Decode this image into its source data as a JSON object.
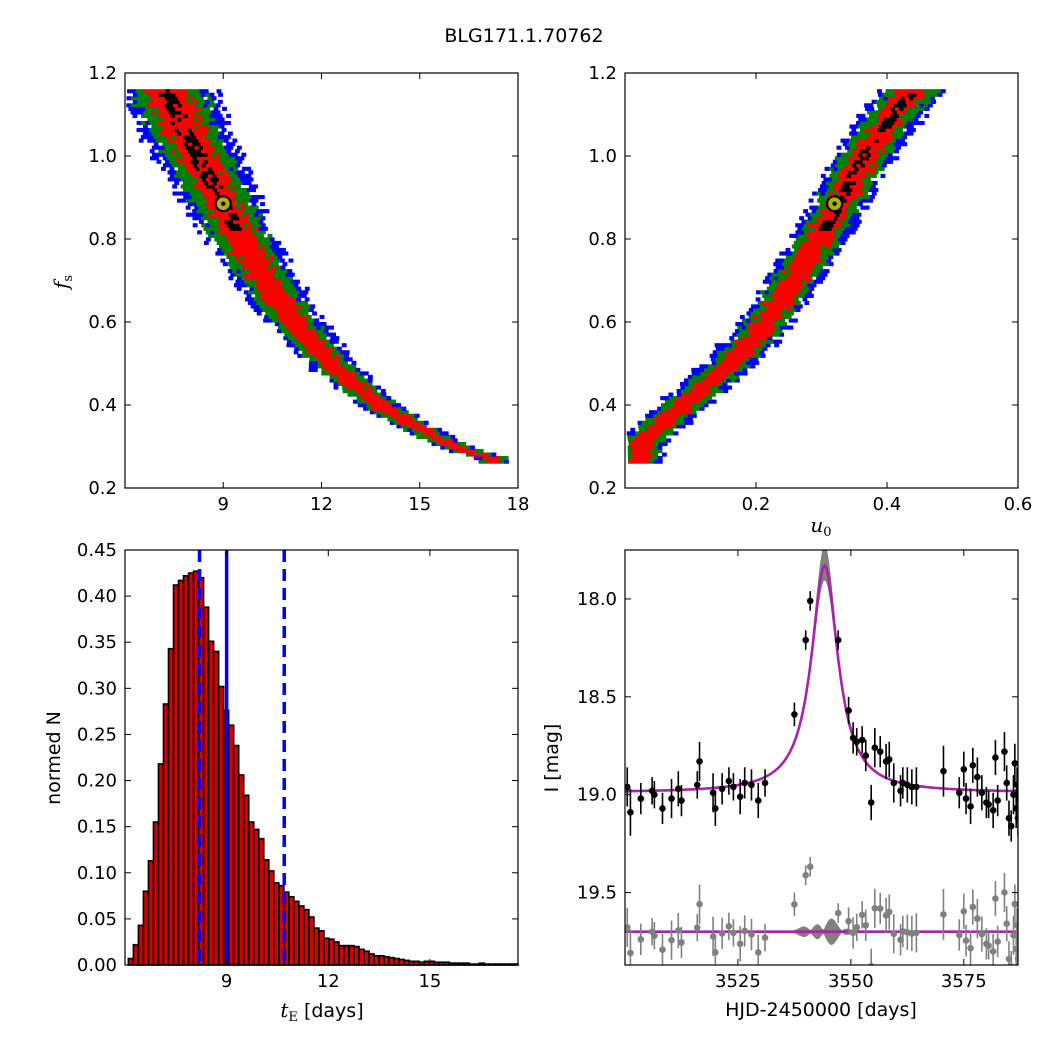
{
  "figure": {
    "title": "BLG171.1.70762"
  },
  "colors": {
    "sigma1": "#ff0000",
    "sigma2": "#008000",
    "sigma3": "#0000ff",
    "best": "#000000",
    "marker_face": "#b5b000",
    "hist_bar": "#d40000",
    "hist_lines": "#0000ff",
    "model": "#aa22aa",
    "band": "#808080",
    "data": "#000000",
    "residual": "#808080"
  },
  "chart_data": [
    {
      "type": "heatmap",
      "panel": "fs_vs_tE",
      "xlabel": "",
      "ylabel": {
        "main": "f",
        "sub": "s"
      },
      "xlim": [
        6.0,
        18.0
      ],
      "ylim": [
        0.2,
        1.2
      ],
      "xticks": [
        "9",
        "12",
        "15",
        "18"
      ],
      "yticks": [
        "0.2",
        "0.4",
        "0.6",
        "0.8",
        "1.0",
        "1.2"
      ],
      "best_fit": {
        "x": 9.0,
        "y": 0.885
      },
      "ridge": [
        [
          7.2,
          1.15
        ],
        [
          7.8,
          1.05
        ],
        [
          8.4,
          0.96
        ],
        [
          9.0,
          0.87
        ],
        [
          9.6,
          0.78
        ],
        [
          10.2,
          0.7
        ],
        [
          10.8,
          0.63
        ],
        [
          11.5,
          0.56
        ],
        [
          12.2,
          0.5
        ],
        [
          13.0,
          0.44
        ],
        [
          13.8,
          0.39
        ],
        [
          14.7,
          0.35
        ],
        [
          15.6,
          0.31
        ],
        [
          16.5,
          0.28
        ],
        [
          17.2,
          0.27
        ]
      ],
      "levels": [
        "3-sigma",
        "2-sigma",
        "1-sigma",
        "best"
      ]
    },
    {
      "type": "heatmap",
      "panel": "fs_vs_u0",
      "xlabel": {
        "main": "u",
        "sub": "0"
      },
      "ylabel": "",
      "xlim": [
        0.0,
        0.6
      ],
      "ylim": [
        0.2,
        1.2
      ],
      "xticks": [
        "0.2",
        "0.4",
        "0.6"
      ],
      "yticks": [
        "0.2",
        "0.4",
        "0.6",
        "0.8",
        "1.0",
        "1.2"
      ],
      "best_fit": {
        "x": 0.32,
        "y": 0.885
      },
      "ridge": [
        [
          0.02,
          0.3
        ],
        [
          0.06,
          0.36
        ],
        [
          0.11,
          0.43
        ],
        [
          0.16,
          0.5
        ],
        [
          0.2,
          0.57
        ],
        [
          0.23,
          0.64
        ],
        [
          0.26,
          0.71
        ],
        [
          0.29,
          0.79
        ],
        [
          0.32,
          0.87
        ],
        [
          0.35,
          0.96
        ],
        [
          0.38,
          1.04
        ],
        [
          0.41,
          1.11
        ],
        [
          0.44,
          1.16
        ]
      ],
      "levels": [
        "3-sigma",
        "2-sigma",
        "1-sigma",
        "best"
      ]
    },
    {
      "type": "bar",
      "panel": "tE_histogram",
      "xlabel": {
        "main": "t",
        "sub": "E",
        "unit": "[days]"
      },
      "ylabel": "normed N",
      "xlim": [
        6.0,
        17.6
      ],
      "ylim": [
        0.0,
        0.45
      ],
      "xticks": [
        "9",
        "12",
        "15"
      ],
      "yticks": [
        "0.00",
        "0.05",
        "0.10",
        "0.15",
        "0.20",
        "0.25",
        "0.30",
        "0.35",
        "0.40",
        "0.45"
      ],
      "bin_width": 0.148,
      "bin_start": 6.1,
      "values": [
        0.007,
        0.022,
        0.043,
        0.08,
        0.113,
        0.155,
        0.218,
        0.283,
        0.343,
        0.412,
        0.417,
        0.422,
        0.425,
        0.427,
        0.42,
        0.388,
        0.351,
        0.34,
        0.302,
        0.276,
        0.26,
        0.238,
        0.206,
        0.184,
        0.155,
        0.147,
        0.137,
        0.114,
        0.102,
        0.089,
        0.086,
        0.079,
        0.074,
        0.069,
        0.064,
        0.06,
        0.052,
        0.04,
        0.037,
        0.029,
        0.028,
        0.025,
        0.021,
        0.021,
        0.021,
        0.02,
        0.017,
        0.015,
        0.012,
        0.01,
        0.01,
        0.009,
        0.008,
        0.007,
        0.006,
        0.005,
        0.004,
        0.004,
        0.003,
        0.004,
        0.004,
        0.003,
        0.003,
        0.003,
        0.002,
        0.002,
        0.002,
        0.002,
        0.001,
        0.001,
        0.002,
        0.001,
        0.001,
        0.001,
        0.001,
        0.001,
        0.001,
        0.001
      ],
      "vlines": [
        {
          "x": 8.2,
          "style": "dashed"
        },
        {
          "x": 9.0,
          "style": "solid"
        },
        {
          "x": 10.7,
          "style": "dashed"
        }
      ]
    },
    {
      "type": "scatter",
      "panel": "lightcurve",
      "xlabel": "HJD-2450000 [days]",
      "ylabel": "I [mag]",
      "xlim": [
        3500.0,
        3587.0
      ],
      "ylim": [
        19.87,
        17.75
      ],
      "xticks": [
        "3525",
        "3550",
        "3575"
      ],
      "yticks": [
        "18.0",
        "18.5",
        "19.0",
        "19.5"
      ],
      "model": {
        "t0": 3544.2,
        "base": 18.99,
        "peak": 17.83,
        "width": 3.6
      },
      "residual_offset": 19.7,
      "points": [
        [
          3500.5,
          18.96,
          0.1
        ],
        [
          3501.2,
          19.09,
          0.12
        ],
        [
          3503.5,
          19.02,
          0.08
        ],
        [
          3506.0,
          18.98,
          0.07
        ],
        [
          3506.5,
          19.0,
          0.07
        ],
        [
          3508.3,
          19.07,
          0.08
        ],
        [
          3510.3,
          19.02,
          0.1
        ],
        [
          3511.8,
          18.97,
          0.09
        ],
        [
          3512.5,
          19.03,
          0.08
        ],
        [
          3516.0,
          18.95,
          0.07
        ],
        [
          3516.5,
          18.83,
          0.1
        ],
        [
          3519.5,
          18.99,
          0.1
        ],
        [
          3520.0,
          19.07,
          0.09
        ],
        [
          3521.5,
          18.97,
          0.08
        ],
        [
          3523.0,
          18.93,
          0.07
        ],
        [
          3524.0,
          18.96,
          0.07
        ],
        [
          3525.5,
          19.01,
          0.09
        ],
        [
          3526.5,
          18.94,
          0.08
        ],
        [
          3528.0,
          18.95,
          0.08
        ],
        [
          3529.5,
          19.03,
          0.09
        ],
        [
          3531.0,
          18.94,
          0.07
        ],
        [
          3537.5,
          18.59,
          0.06
        ],
        [
          3540.0,
          18.21,
          0.05
        ],
        [
          3541.0,
          18.01,
          0.05
        ],
        [
          3547.2,
          18.21,
          0.05
        ],
        [
          3549.5,
          18.57,
          0.07
        ],
        [
          3550.5,
          18.71,
          0.08
        ],
        [
          3551.3,
          18.73,
          0.07
        ],
        [
          3552.5,
          18.72,
          0.07
        ],
        [
          3553.3,
          18.8,
          0.08
        ],
        [
          3554.5,
          19.04,
          0.09
        ],
        [
          3555.3,
          18.76,
          0.1
        ],
        [
          3556.5,
          18.78,
          0.08
        ],
        [
          3557.8,
          18.83,
          0.09
        ],
        [
          3558.5,
          18.82,
          0.09
        ],
        [
          3559.5,
          18.94,
          0.1
        ],
        [
          3561.0,
          18.98,
          0.08
        ],
        [
          3561.5,
          18.94,
          0.08
        ],
        [
          3562.5,
          18.95,
          0.09
        ],
        [
          3563.5,
          18.96,
          0.09
        ],
        [
          3564.5,
          18.96,
          0.1
        ],
        [
          3570.5,
          18.88,
          0.13
        ],
        [
          3574.0,
          18.99,
          0.08
        ],
        [
          3575.0,
          18.87,
          0.09
        ],
        [
          3575.5,
          19.02,
          0.08
        ],
        [
          3576.5,
          19.06,
          0.09
        ],
        [
          3577.0,
          18.85,
          0.09
        ],
        [
          3578.0,
          18.91,
          0.1
        ],
        [
          3579.0,
          18.99,
          0.09
        ],
        [
          3580.0,
          19.04,
          0.08
        ],
        [
          3580.5,
          19.05,
          0.07
        ],
        [
          3581.5,
          19.08,
          0.09
        ],
        [
          3582.0,
          18.81,
          0.09
        ],
        [
          3582.5,
          19.03,
          0.08
        ],
        [
          3584.0,
          18.78,
          0.1
        ],
        [
          3584.5,
          18.94,
          0.09
        ],
        [
          3585.0,
          19.12,
          0.09
        ],
        [
          3585.5,
          19.16,
          0.08
        ],
        [
          3586.0,
          19.0,
          0.1
        ],
        [
          3586.3,
          18.84,
          0.1
        ],
        [
          3586.6,
          19.07,
          0.1
        ],
        [
          3586.8,
          18.95,
          0.09
        ],
        [
          3587.0,
          19.12,
          0.09
        ]
      ]
    }
  ]
}
